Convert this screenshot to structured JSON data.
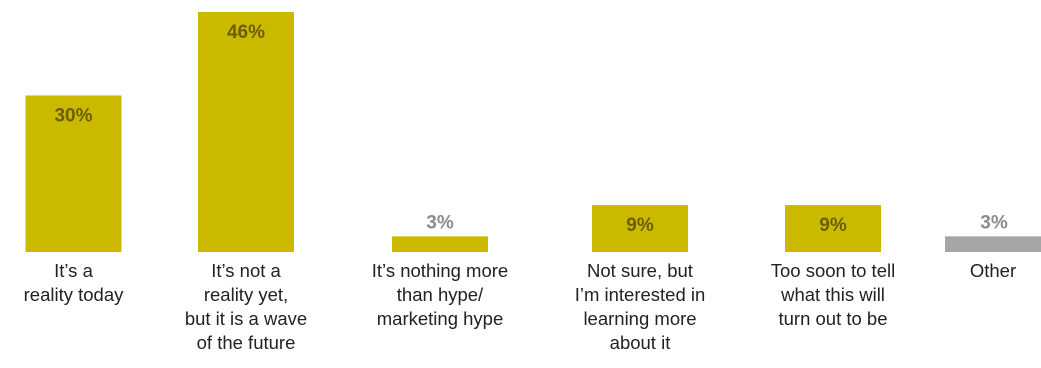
{
  "chart_data": {
    "type": "bar",
    "categories": [
      [
        "It’s a",
        "reality today"
      ],
      [
        "It’s not a",
        "reality yet,",
        "but it is a wave",
        "of the future"
      ],
      [
        "It’s nothing more",
        "than hype/",
        "marketing hype"
      ],
      [
        "Not sure, but",
        "I’m interested in",
        "learning more",
        "about it"
      ],
      [
        "Too soon to tell",
        "what this will",
        "turn out to be"
      ],
      [
        "Other"
      ]
    ],
    "values": [
      30,
      46,
      3,
      9,
      9,
      3
    ],
    "data_labels": [
      "30%",
      "46%",
      "3%",
      "9%",
      "9%",
      "3%"
    ],
    "ylim": [
      0,
      46
    ],
    "grid": false,
    "colors": {
      "bar": "#cbb900",
      "bar_other": "#a6a6a6",
      "label_inside": "#6b5f00",
      "label_outside": "#8c8c8c"
    }
  }
}
